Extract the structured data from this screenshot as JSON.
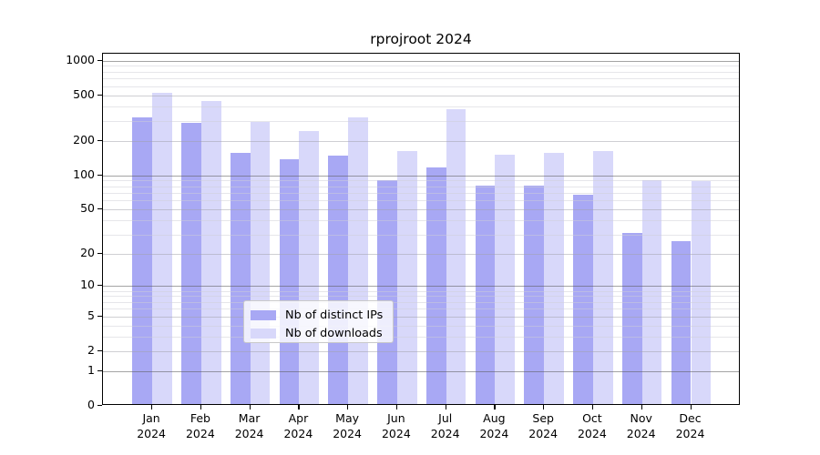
{
  "chart_data": {
    "type": "bar",
    "title": "rprojroot 2024",
    "categories": [
      "Jan",
      "Feb",
      "Mar",
      "Apr",
      "May",
      "Jun",
      "Jul",
      "Aug",
      "Sep",
      "Oct",
      "Nov",
      "Dec"
    ],
    "category_year": "2024",
    "series": [
      {
        "name": "Nb of distinct IPs",
        "color": "#a8a8f4",
        "values": [
          310,
          278,
          152,
          134,
          143,
          88,
          112,
          78,
          78,
          65,
          30,
          25
        ]
      },
      {
        "name": "Nb of downloads",
        "color": "#d8d8fa",
        "values": [
          505,
          430,
          280,
          237,
          308,
          157,
          365,
          145,
          152,
          156,
          88,
          85
        ]
      }
    ],
    "y_axis": {
      "scale": "log1p",
      "tick_labels": [
        1000,
        500,
        200,
        100,
        50,
        20,
        10,
        5,
        2,
        1,
        0
      ],
      "top_value": 1150
    },
    "xlabel": "",
    "ylabel": "",
    "grid": "on",
    "legend_position": "inside-bottom-center"
  }
}
